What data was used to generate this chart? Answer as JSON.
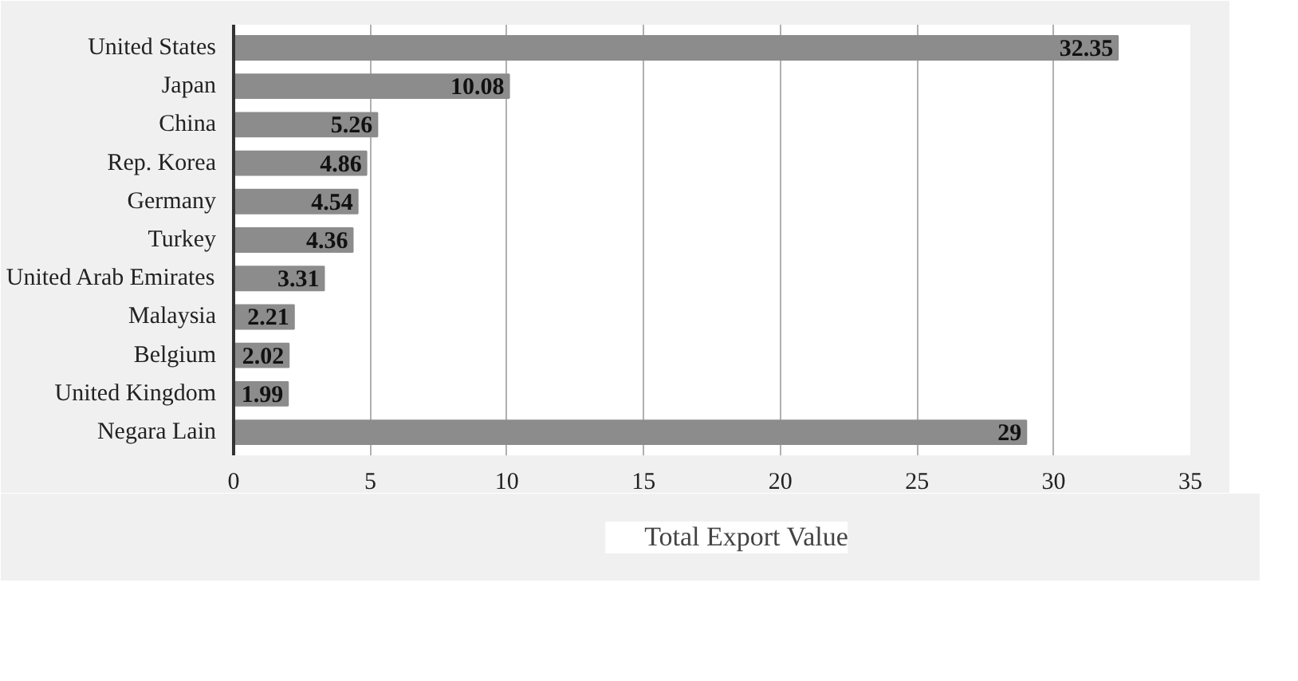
{
  "chart_data": {
    "type": "bar",
    "orientation": "horizontal",
    "categories": [
      "United States",
      "Japan",
      "China",
      "Rep. Korea",
      "Germany",
      "Turkey",
      "United Arab Emirates",
      "Malaysia",
      "Belgium",
      "United Kingdom",
      "Negara Lain"
    ],
    "series": [
      {
        "name": "Total Export Value",
        "color": "#8c8c8c",
        "values": [
          32.35,
          10.08,
          5.26,
          4.86,
          4.54,
          4.36,
          3.31,
          2.21,
          2.02,
          1.99,
          29
        ]
      }
    ],
    "xlim": [
      0,
      35
    ],
    "xticks": [
      0,
      5,
      10,
      15,
      20,
      25,
      30,
      35
    ],
    "grid": "x",
    "legend": "bottom",
    "data_labels": true
  }
}
